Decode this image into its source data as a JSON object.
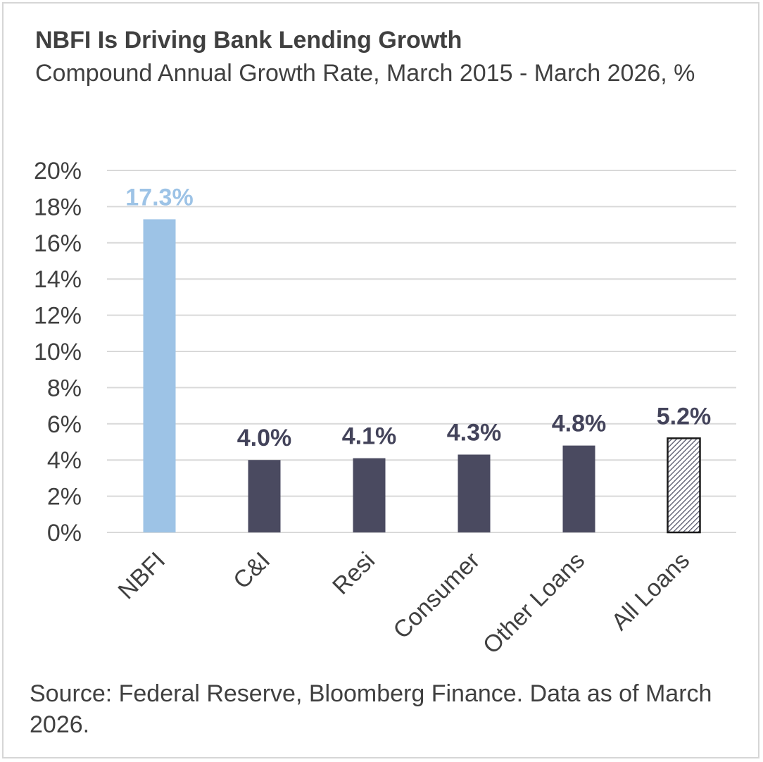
{
  "title": "NBFI Is Driving Bank Lending Growth",
  "subtitle": "Compound Annual Growth Rate, March 2015 - March 2026, %",
  "source": "Source: Federal Reserve, Bloomberg Finance. Data as of March 2026.",
  "colors": {
    "highlight": "#9dc3e6",
    "bar": "#4a4a60",
    "label_highlight": "#9dc3e6",
    "label": "#43435a",
    "axis_text": "#404040",
    "grid": "#d9d9d9"
  },
  "chart_data": {
    "type": "bar",
    "title": "NBFI Is Driving Bank Lending Growth",
    "subtitle": "Compound Annual Growth Rate, March 2015 - March 2026, %",
    "categories": [
      "NBFI",
      "C&I",
      "Resi",
      "Consumer",
      "Other Loans",
      "All Loans"
    ],
    "values": [
      17.3,
      4.0,
      4.1,
      4.3,
      4.8,
      5.2
    ],
    "data_labels": [
      "17.3%",
      "4.0%",
      "4.1%",
      "4.3%",
      "4.8%",
      "5.2%"
    ],
    "bar_styles": [
      "highlight",
      "solid",
      "solid",
      "solid",
      "solid",
      "hatched"
    ],
    "ylim": [
      0,
      20
    ],
    "yticks": [
      0,
      2,
      4,
      6,
      8,
      10,
      12,
      14,
      16,
      18,
      20
    ],
    "ytick_labels": [
      "0%",
      "2%",
      "4%",
      "6%",
      "8%",
      "10%",
      "12%",
      "14%",
      "16%",
      "18%",
      "20%"
    ],
    "xlabel": "",
    "ylabel": "",
    "grid": true,
    "legend": "none"
  }
}
